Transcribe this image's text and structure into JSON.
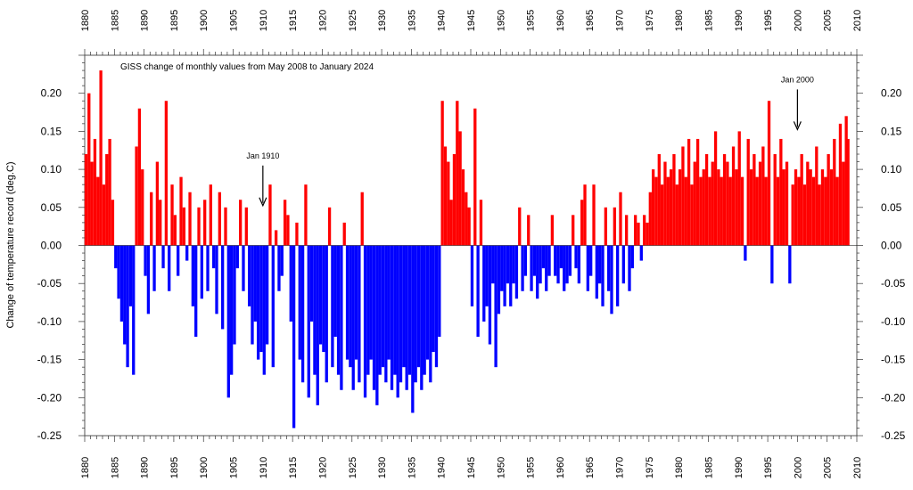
{
  "chart_data": {
    "type": "bar",
    "title": "GISS change of monthly values from May 2008 to January 2024",
    "ylabel": "Change of temperature record (deg.C)",
    "xlabel": "",
    "xlim": [
      1880,
      2010
    ],
    "ylim": [
      -0.25,
      0.25
    ],
    "x_ticks": [
      1880,
      1885,
      1890,
      1895,
      1900,
      1905,
      1910,
      1915,
      1920,
      1925,
      1930,
      1935,
      1940,
      1945,
      1950,
      1955,
      1960,
      1965,
      1970,
      1975,
      1980,
      1985,
      1990,
      1995,
      2000,
      2005,
      2010
    ],
    "y_ticks": [
      0.2,
      0.15,
      0.1,
      0.05,
      0.0,
      -0.05,
      -0.1,
      -0.15,
      -0.2,
      -0.25
    ],
    "y_tick_labels": [
      "0.20",
      "0.15",
      "0.10",
      "0.05",
      "0.00",
      "-0.05",
      "-0.10",
      "-0.15",
      "-0.20",
      "-0.25"
    ],
    "x_tick_labels": [
      "1880",
      "1885",
      "1890",
      "1895",
      "1900",
      "1905",
      "1910",
      "1915",
      "1920",
      "1925",
      "1930",
      "1935",
      "1940",
      "1945",
      "1950",
      "1955",
      "1960",
      "1965",
      "1970",
      "1975",
      "1980",
      "1985",
      "1990",
      "1995",
      "2000",
      "2005",
      "2010"
    ],
    "colors": {
      "positive": "#ff0000",
      "negative": "#0000ff"
    },
    "x_units": "year (monthly resolution)",
    "series": [
      {
        "values": [
          [
            1880.0,
            0.12
          ],
          [
            1880.5,
            0.2
          ],
          [
            1881.0,
            0.11
          ],
          [
            1881.5,
            0.14
          ],
          [
            1882.0,
            0.09
          ],
          [
            1882.5,
            0.23
          ],
          [
            1883.0,
            0.08
          ],
          [
            1883.5,
            0.12
          ],
          [
            1884.0,
            0.14
          ],
          [
            1884.5,
            0.06
          ],
          [
            1885.0,
            -0.03
          ],
          [
            1885.5,
            -0.07
          ],
          [
            1886.0,
            -0.1
          ],
          [
            1886.5,
            -0.13
          ],
          [
            1887.0,
            -0.16
          ],
          [
            1887.5,
            -0.08
          ],
          [
            1888.0,
            -0.17
          ],
          [
            1888.5,
            0.13
          ],
          [
            1889.0,
            0.18
          ],
          [
            1889.5,
            0.1
          ],
          [
            1890.0,
            -0.04
          ],
          [
            1890.5,
            -0.09
          ],
          [
            1891.0,
            0.07
          ],
          [
            1891.5,
            -0.06
          ],
          [
            1892.0,
            0.11
          ],
          [
            1892.5,
            0.06
          ],
          [
            1893.0,
            -0.03
          ],
          [
            1893.5,
            0.19
          ],
          [
            1894.0,
            -0.06
          ],
          [
            1894.5,
            0.08
          ],
          [
            1895.0,
            0.04
          ],
          [
            1895.5,
            -0.04
          ],
          [
            1896.0,
            0.09
          ],
          [
            1896.5,
            0.05
          ],
          [
            1897.0,
            -0.02
          ],
          [
            1897.5,
            0.07
          ],
          [
            1898.0,
            -0.08
          ],
          [
            1898.5,
            -0.12
          ],
          [
            1899.0,
            0.05
          ],
          [
            1899.5,
            -0.07
          ],
          [
            1900.0,
            0.06
          ],
          [
            1900.5,
            -0.06
          ],
          [
            1901.0,
            0.08
          ],
          [
            1901.5,
            -0.03
          ],
          [
            1902.0,
            -0.09
          ],
          [
            1902.5,
            0.07
          ],
          [
            1903.0,
            -0.11
          ],
          [
            1903.5,
            0.05
          ],
          [
            1904.0,
            -0.2
          ],
          [
            1904.5,
            -0.17
          ],
          [
            1905.0,
            -0.13
          ],
          [
            1905.5,
            -0.03
          ],
          [
            1906.0,
            0.06
          ],
          [
            1906.5,
            -0.06
          ],
          [
            1907.0,
            0.05
          ],
          [
            1907.5,
            -0.08
          ],
          [
            1908.0,
            -0.13
          ],
          [
            1908.5,
            -0.1
          ],
          [
            1909.0,
            -0.15
          ],
          [
            1909.5,
            -0.14
          ],
          [
            1910.0,
            -0.17
          ],
          [
            1910.5,
            -0.13
          ],
          [
            1911.0,
            0.08
          ],
          [
            1911.5,
            -0.16
          ],
          [
            1912.0,
            0.02
          ],
          [
            1912.5,
            -0.06
          ],
          [
            1913.0,
            -0.04
          ],
          [
            1913.5,
            0.06
          ],
          [
            1914.0,
            0.04
          ],
          [
            1914.5,
            -0.1
          ],
          [
            1915.0,
            -0.24
          ],
          [
            1915.5,
            0.03
          ],
          [
            1916.0,
            -0.15
          ],
          [
            1916.5,
            -0.18
          ],
          [
            1917.0,
            0.08
          ],
          [
            1917.5,
            -0.2
          ],
          [
            1918.0,
            -0.1
          ],
          [
            1918.5,
            -0.17
          ],
          [
            1919.0,
            -0.21
          ],
          [
            1919.5,
            -0.13
          ],
          [
            1920.0,
            -0.14
          ],
          [
            1920.5,
            -0.18
          ],
          [
            1921.0,
            0.05
          ],
          [
            1921.5,
            -0.16
          ],
          [
            1922.0,
            -0.12
          ],
          [
            1922.5,
            -0.17
          ],
          [
            1923.0,
            -0.19
          ],
          [
            1923.5,
            0.03
          ],
          [
            1924.0,
            -0.15
          ],
          [
            1924.5,
            -0.16
          ],
          [
            1925.0,
            -0.19
          ],
          [
            1925.5,
            -0.15
          ],
          [
            1926.0,
            -0.18
          ],
          [
            1926.5,
            0.07
          ],
          [
            1927.0,
            -0.2
          ],
          [
            1927.5,
            -0.17
          ],
          [
            1928.0,
            -0.15
          ],
          [
            1928.5,
            -0.19
          ],
          [
            1929.0,
            -0.21
          ],
          [
            1929.5,
            -0.17
          ],
          [
            1930.0,
            -0.16
          ],
          [
            1930.5,
            -0.18
          ],
          [
            1931.0,
            -0.15
          ],
          [
            1931.5,
            -0.19
          ],
          [
            1932.0,
            -0.17
          ],
          [
            1932.5,
            -0.2
          ],
          [
            1933.0,
            -0.18
          ],
          [
            1933.5,
            -0.16
          ],
          [
            1934.0,
            -0.19
          ],
          [
            1934.5,
            -0.17
          ],
          [
            1935.0,
            -0.22
          ],
          [
            1935.5,
            -0.18
          ],
          [
            1936.0,
            -0.16
          ],
          [
            1936.5,
            -0.19
          ],
          [
            1937.0,
            -0.17
          ],
          [
            1937.5,
            -0.15
          ],
          [
            1938.0,
            -0.18
          ],
          [
            1938.5,
            -0.14
          ],
          [
            1939.0,
            -0.16
          ],
          [
            1939.5,
            -0.12
          ],
          [
            1940.0,
            0.19
          ],
          [
            1940.5,
            0.13
          ],
          [
            1941.0,
            0.11
          ],
          [
            1941.5,
            0.06
          ],
          [
            1942.0,
            0.12
          ],
          [
            1942.5,
            0.19
          ],
          [
            1943.0,
            0.15
          ],
          [
            1943.5,
            0.1
          ],
          [
            1944.0,
            0.07
          ],
          [
            1944.5,
            0.05
          ],
          [
            1945.0,
            -0.08
          ],
          [
            1945.5,
            0.18
          ],
          [
            1946.0,
            -0.12
          ],
          [
            1946.5,
            0.06
          ],
          [
            1947.0,
            -0.1
          ],
          [
            1947.5,
            -0.08
          ],
          [
            1948.0,
            -0.13
          ],
          [
            1948.5,
            -0.05
          ],
          [
            1949.0,
            -0.16
          ],
          [
            1949.5,
            -0.09
          ],
          [
            1950.0,
            -0.06
          ],
          [
            1950.5,
            -0.08
          ],
          [
            1951.0,
            -0.05
          ],
          [
            1951.5,
            -0.08
          ],
          [
            1952.0,
            -0.05
          ],
          [
            1952.5,
            -0.07
          ],
          [
            1953.0,
            0.05
          ],
          [
            1953.5,
            -0.06
          ],
          [
            1954.0,
            -0.04
          ],
          [
            1954.5,
            0.04
          ],
          [
            1955.0,
            -0.06
          ],
          [
            1955.5,
            -0.04
          ],
          [
            1956.0,
            -0.07
          ],
          [
            1956.5,
            -0.05
          ],
          [
            1957.0,
            -0.03
          ],
          [
            1957.5,
            -0.06
          ],
          [
            1958.0,
            -0.04
          ],
          [
            1958.5,
            0.04
          ],
          [
            1959.0,
            -0.04
          ],
          [
            1959.5,
            -0.05
          ],
          [
            1960.0,
            -0.03
          ],
          [
            1960.5,
            -0.06
          ],
          [
            1961.0,
            -0.05
          ],
          [
            1961.5,
            -0.04
          ],
          [
            1962.0,
            0.04
          ],
          [
            1962.5,
            -0.03
          ],
          [
            1963.0,
            -0.05
          ],
          [
            1963.5,
            0.06
          ],
          [
            1964.0,
            0.08
          ],
          [
            1964.5,
            -0.06
          ],
          [
            1965.0,
            -0.04
          ],
          [
            1965.5,
            0.08
          ],
          [
            1966.0,
            -0.07
          ],
          [
            1966.5,
            -0.05
          ],
          [
            1967.0,
            -0.08
          ],
          [
            1967.5,
            0.05
          ],
          [
            1968.0,
            -0.06
          ],
          [
            1968.5,
            -0.09
          ],
          [
            1969.0,
            0.05
          ],
          [
            1969.5,
            -0.08
          ],
          [
            1970.0,
            0.07
          ],
          [
            1970.5,
            -0.05
          ],
          [
            1971.0,
            0.04
          ],
          [
            1971.5,
            -0.06
          ],
          [
            1972.0,
            -0.03
          ],
          [
            1972.5,
            0.04
          ],
          [
            1973.0,
            0.03
          ],
          [
            1973.5,
            -0.02
          ],
          [
            1974.0,
            0.04
          ],
          [
            1974.5,
            0.03
          ],
          [
            1975.0,
            0.07
          ],
          [
            1975.5,
            0.1
          ],
          [
            1976.0,
            0.09
          ],
          [
            1976.5,
            0.12
          ],
          [
            1977.0,
            0.08
          ],
          [
            1977.5,
            0.11
          ],
          [
            1978.0,
            0.09
          ],
          [
            1978.5,
            0.1
          ],
          [
            1979.0,
            0.12
          ],
          [
            1979.5,
            0.08
          ],
          [
            1980.0,
            0.1
          ],
          [
            1980.5,
            0.13
          ],
          [
            1981.0,
            0.09
          ],
          [
            1981.5,
            0.14
          ],
          [
            1982.0,
            0.08
          ],
          [
            1982.5,
            0.11
          ],
          [
            1983.0,
            0.14
          ],
          [
            1983.5,
            0.09
          ],
          [
            1984.0,
            0.1
          ],
          [
            1984.5,
            0.12
          ],
          [
            1985.0,
            0.09
          ],
          [
            1985.5,
            0.11
          ],
          [
            1986.0,
            0.15
          ],
          [
            1986.5,
            0.1
          ],
          [
            1987.0,
            0.09
          ],
          [
            1987.5,
            0.12
          ],
          [
            1988.0,
            0.11
          ],
          [
            1988.5,
            0.09
          ],
          [
            1989.0,
            0.13
          ],
          [
            1989.5,
            0.1
          ],
          [
            1990.0,
            0.15
          ],
          [
            1990.5,
            0.09
          ],
          [
            1991.0,
            -0.02
          ],
          [
            1991.5,
            0.14
          ],
          [
            1992.0,
            0.1
          ],
          [
            1992.5,
            0.12
          ],
          [
            1993.0,
            0.09
          ],
          [
            1993.5,
            0.11
          ],
          [
            1994.0,
            0.13
          ],
          [
            1994.5,
            0.09
          ],
          [
            1995.0,
            0.19
          ],
          [
            1995.5,
            -0.05
          ],
          [
            1996.0,
            0.12
          ],
          [
            1996.5,
            0.09
          ],
          [
            1997.0,
            0.14
          ],
          [
            1997.5,
            0.1
          ],
          [
            1998.0,
            0.11
          ],
          [
            1998.5,
            -0.05
          ],
          [
            1999.0,
            0.08
          ],
          [
            1999.5,
            0.1
          ],
          [
            2000.0,
            0.09
          ],
          [
            2000.5,
            0.12
          ],
          [
            2001.0,
            0.08
          ],
          [
            2001.5,
            0.11
          ],
          [
            2002.0,
            0.1
          ],
          [
            2002.5,
            0.09
          ],
          [
            2003.0,
            0.13
          ],
          [
            2003.5,
            0.08
          ],
          [
            2004.0,
            0.1
          ],
          [
            2004.5,
            0.09
          ],
          [
            2005.0,
            0.12
          ],
          [
            2005.5,
            0.1
          ],
          [
            2006.0,
            0.14
          ],
          [
            2006.5,
            0.09
          ],
          [
            2007.0,
            0.16
          ],
          [
            2007.5,
            0.11
          ],
          [
            2008.0,
            0.17
          ],
          [
            2008.3,
            0.14
          ]
        ]
      }
    ],
    "annotations": [
      {
        "text": "Jan 1910",
        "x": 1910.0,
        "y": 0.05
      },
      {
        "text": "Jan 2000",
        "x": 2000.0,
        "y": 0.15
      }
    ],
    "grid": false,
    "legend": "none"
  }
}
